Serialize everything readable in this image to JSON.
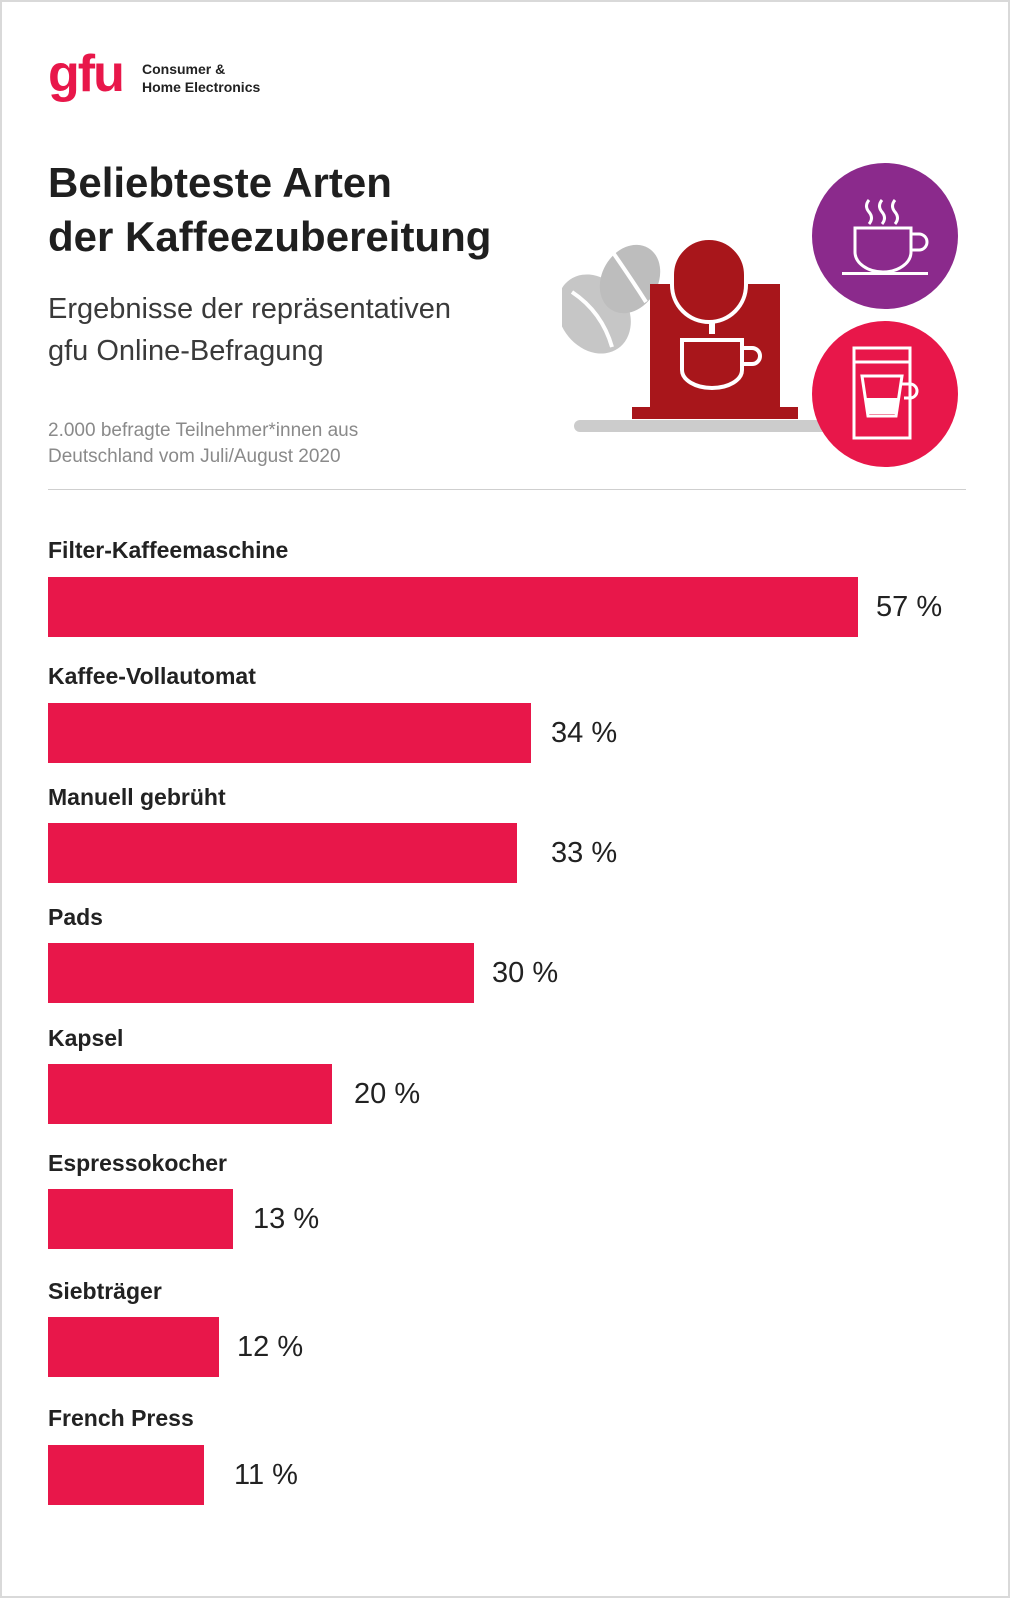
{
  "brand": {
    "logo_text": "gfu",
    "tagline_line1": "Consumer &",
    "tagline_line2": "Home Electronics",
    "accent": "#e8174a"
  },
  "header": {
    "title_line1": "Beliebteste Arten",
    "title_line2": "der Kaffeezubereitung",
    "subtitle_line1": "Ergebnisse der repräsentativen",
    "subtitle_line2": "gfu Online-Befragung",
    "note_line1": "2.000 befragte Teilnehmer*innen aus",
    "note_line2": "Deutschland vom Juli/August 2020"
  },
  "icons": [
    "coffee-bean-icon",
    "espresso-machine-icon",
    "steaming-cup-icon",
    "filter-coffee-machine-icon"
  ],
  "colors": {
    "bar": "#e8174a",
    "machine": "#a8161b",
    "purple": "#8b2a8c",
    "bean": "#cccccc"
  },
  "chart_data": {
    "type": "bar",
    "orientation": "horizontal",
    "title": "Beliebteste Arten der Kaffeezubereitung",
    "unit": "%",
    "xlim": [
      0,
      57
    ],
    "categories": [
      "Filter-Kaffeemaschine",
      "Kaffee-Vollautomat",
      "Manuell gebrüht",
      "Pads",
      "Kapsel",
      "Espressokocher",
      "Siebträger",
      "French Press"
    ],
    "values": [
      57,
      34,
      33,
      30,
      20,
      13,
      12,
      11
    ],
    "value_labels": [
      "57 %",
      "34 %",
      "33 %",
      "30 %",
      "20 %",
      "13 %",
      "12 %",
      "11 %"
    ]
  }
}
